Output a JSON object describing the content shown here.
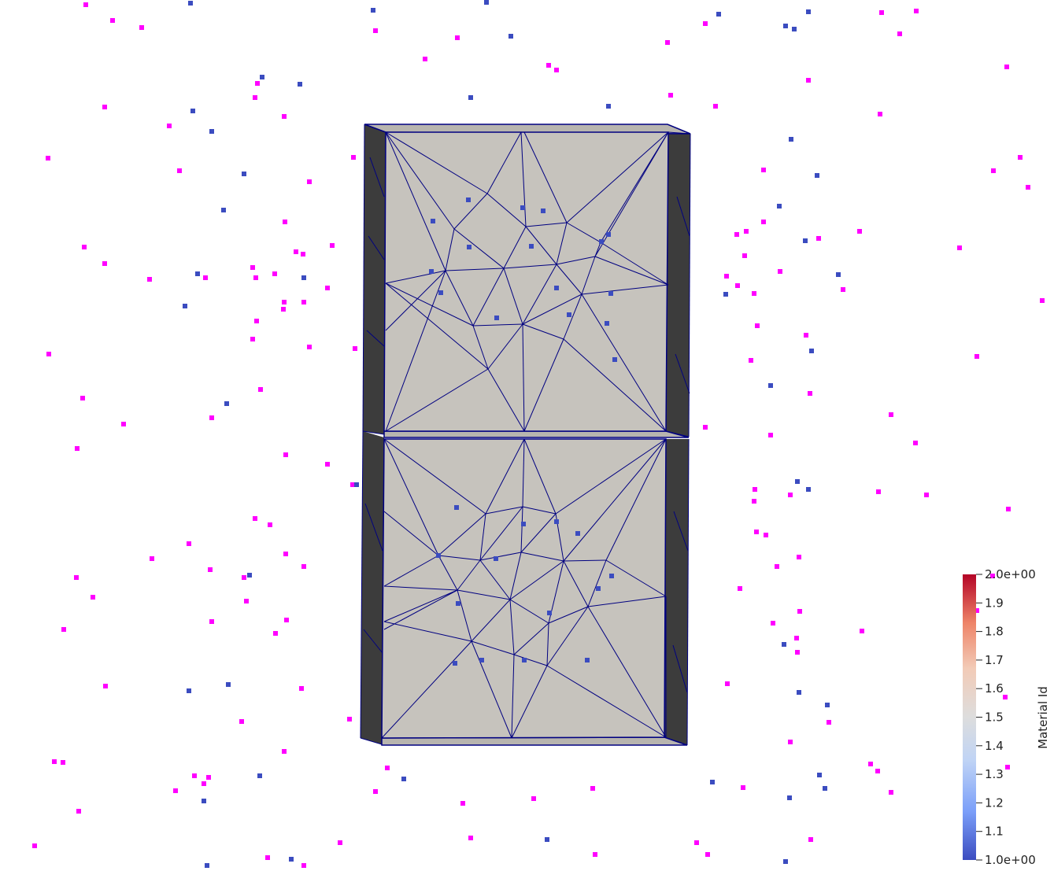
{
  "colorbar": {
    "title": "Material Id",
    "min": 1.0,
    "max": 2.0,
    "ticks": [
      {
        "value": 2.0,
        "label": "2.0e+00"
      },
      {
        "value": 1.9,
        "label": "1.9"
      },
      {
        "value": 1.8,
        "label": "1.8"
      },
      {
        "value": 1.7,
        "label": "1.7"
      },
      {
        "value": 1.6,
        "label": "1.6"
      },
      {
        "value": 1.5,
        "label": "1.5"
      },
      {
        "value": 1.4,
        "label": "1.4"
      },
      {
        "value": 1.3,
        "label": "1.3"
      },
      {
        "value": 1.2,
        "label": "1.2"
      },
      {
        "value": 1.1,
        "label": "1.1"
      },
      {
        "value": 1.0,
        "label": "1.0e+00"
      }
    ],
    "colors": [
      "#3b4cc0",
      "#7b9ff9",
      "#c0d4f5",
      "#dddddd",
      "#f2cbb7",
      "#ee8468",
      "#b40426"
    ]
  },
  "colors": {
    "background": "#ffffff",
    "mesh_face": "#c6c3bd",
    "mesh_side": "#3c3c3c",
    "mesh_edge": "#000080",
    "point_material_1": "#3b4cc0",
    "point_material_2": "#ff00ff"
  }
}
